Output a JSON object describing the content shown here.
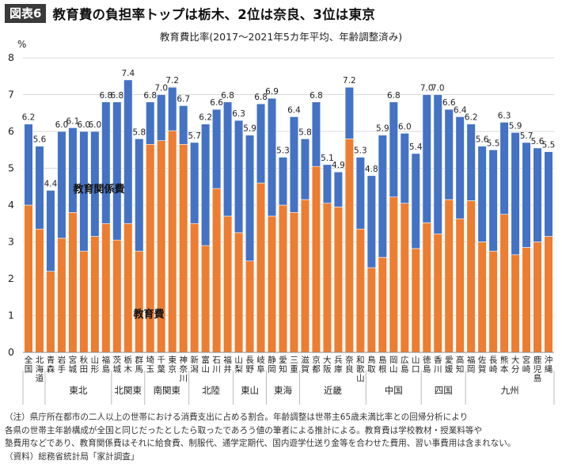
{
  "header": {
    "badge": "図表6",
    "title": "教育費の負担率トップは栃木、2位は奈良、3位は東京"
  },
  "chart_data": {
    "type": "bar",
    "stacked": true,
    "title": "教育費比率(2017〜2021年5カ年平均、年齢調整済み)",
    "ylabel": "%",
    "ylim": [
      0,
      8
    ],
    "yticks": [
      "0",
      "1",
      "2",
      "3",
      "4",
      "5",
      "6",
      "7",
      "8"
    ],
    "grid": true,
    "categories": [
      [
        "全",
        "国"
      ],
      [
        "北",
        "海",
        "道"
      ],
      [
        "青",
        "森"
      ],
      [
        "岩",
        "手"
      ],
      [
        "宮",
        "城"
      ],
      [
        "秋",
        "田"
      ],
      [
        "山",
        "形"
      ],
      [
        "福",
        "島"
      ],
      [
        "茨",
        "城"
      ],
      [
        "栃",
        "木"
      ],
      [
        "群",
        "馬"
      ],
      [
        "埼",
        "玉"
      ],
      [
        "千",
        "葉"
      ],
      [
        "東",
        "京"
      ],
      [
        "神",
        "奈",
        "川"
      ],
      [
        "新",
        "潟"
      ],
      [
        "富",
        "山"
      ],
      [
        "石",
        "川"
      ],
      [
        "福",
        "井"
      ],
      [
        "山",
        "梨"
      ],
      [
        "長",
        "野"
      ],
      [
        "岐",
        "阜"
      ],
      [
        "静",
        "岡"
      ],
      [
        "愛",
        "知"
      ],
      [
        "三",
        "重"
      ],
      [
        "滋",
        "賀"
      ],
      [
        "京",
        "都"
      ],
      [
        "大",
        "阪"
      ],
      [
        "兵",
        "庫"
      ],
      [
        "奈",
        "良"
      ],
      [
        "和",
        "歌",
        "山"
      ],
      [
        "鳥",
        "取"
      ],
      [
        "島",
        "根"
      ],
      [
        "岡",
        "山"
      ],
      [
        "広",
        "島"
      ],
      [
        "山",
        "口"
      ],
      [
        "徳",
        "島"
      ],
      [
        "香",
        "川"
      ],
      [
        "愛",
        "媛"
      ],
      [
        "高",
        "知"
      ],
      [
        "福",
        "岡"
      ],
      [
        "佐",
        "賀"
      ],
      [
        "長",
        "崎"
      ],
      [
        "熊",
        "本"
      ],
      [
        "大",
        "分"
      ],
      [
        "宮",
        "崎"
      ],
      [
        "鹿",
        "児",
        "島"
      ],
      [
        "沖",
        "縄"
      ]
    ],
    "total_labels": [
      "6.2",
      "5.6",
      "4.4",
      "6.0",
      "6.1",
      "6.0",
      "6.0",
      "6.8",
      "6.8",
      "7.4",
      "5.8",
      "6.8",
      "7.0",
      "7.2",
      "6.7",
      "5.7",
      "6.2",
      "6.6",
      "6.8",
      "6.3",
      "5.9",
      "6.8",
      "6.9",
      "5.3",
      "6.4",
      "5.8",
      "6.8",
      "5.1",
      "4.9",
      "7.2",
      "5.3",
      "4.8",
      "5.9",
      "6.8",
      "6.0",
      "5.4",
      "7.0",
      "7.0",
      "6.6",
      "6.4",
      "6.2",
      "5.6",
      "5.5",
      "6.3",
      "5.9",
      "5.7",
      "5.6",
      "5.5"
    ],
    "series": [
      {
        "name": "教育費",
        "color": "#ED7D31",
        "values": [
          4.0,
          3.35,
          2.2,
          3.1,
          3.8,
          2.75,
          3.15,
          3.5,
          3.05,
          3.5,
          2.75,
          5.65,
          5.75,
          6.02,
          5.65,
          3.5,
          2.9,
          4.45,
          3.7,
          3.25,
          2.48,
          4.6,
          3.7,
          4.0,
          3.8,
          4.15,
          5.05,
          4.05,
          3.95,
          5.8,
          3.35,
          2.3,
          2.58,
          4.22,
          4.05,
          2.82,
          3.52,
          3.22,
          4.15,
          3.63,
          4.12,
          3.0,
          2.75,
          3.75,
          2.65,
          2.85,
          3.0,
          3.15
        ]
      },
      {
        "name": "教育関係費",
        "color": "#4472C4",
        "values": [
          2.2,
          2.25,
          2.2,
          2.9,
          2.3,
          3.25,
          2.85,
          3.3,
          3.75,
          3.9,
          3.05,
          1.15,
          1.25,
          1.18,
          1.05,
          2.2,
          3.3,
          2.15,
          3.1,
          3.05,
          3.42,
          2.15,
          3.2,
          1.3,
          2.6,
          1.65,
          1.75,
          1.05,
          0.95,
          1.4,
          1.95,
          2.5,
          3.32,
          2.58,
          1.9,
          2.58,
          3.48,
          3.78,
          2.45,
          2.77,
          2.08,
          2.6,
          2.75,
          2.5,
          3.32,
          2.85,
          2.55,
          2.3
        ]
      }
    ],
    "annotations": [
      "教育関係費",
      "教育費"
    ],
    "regions": [
      {
        "label": "",
        "start": 0,
        "end": 1
      },
      {
        "label": "東北",
        "start": 2,
        "end": 7
      },
      {
        "label": "北関東",
        "start": 8,
        "end": 10
      },
      {
        "label": "南関東",
        "start": 11,
        "end": 14
      },
      {
        "label": "北陸",
        "start": 15,
        "end": 18
      },
      {
        "label": "東山",
        "start": 19,
        "end": 21
      },
      {
        "label": "東海",
        "start": 22,
        "end": 24
      },
      {
        "label": "近畿",
        "start": 25,
        "end": 30
      },
      {
        "label": "中国",
        "start": 31,
        "end": 35
      },
      {
        "label": "四国",
        "start": 36,
        "end": 39
      },
      {
        "label": "九州",
        "start": 40,
        "end": 47
      }
    ]
  },
  "footnote": [
    "（注）県庁所在都市の二人以上の世帯における消費支出に占める割合。年齢調整は世帯主65歳未満比率との回帰分析により",
    "各県の世帯主年齢構成が全国と同じだったとしたら取ったであろう値の筆者による推計による。教育費は学校教材・授業料等や",
    "塾費用などであり、教育関係費はそれに給食費、制服代、通学定期代、国内遊学仕送り金等を合わせた費用、習い事費用は含まれない。",
    "（資料）総務省統計局「家計調査」"
  ]
}
